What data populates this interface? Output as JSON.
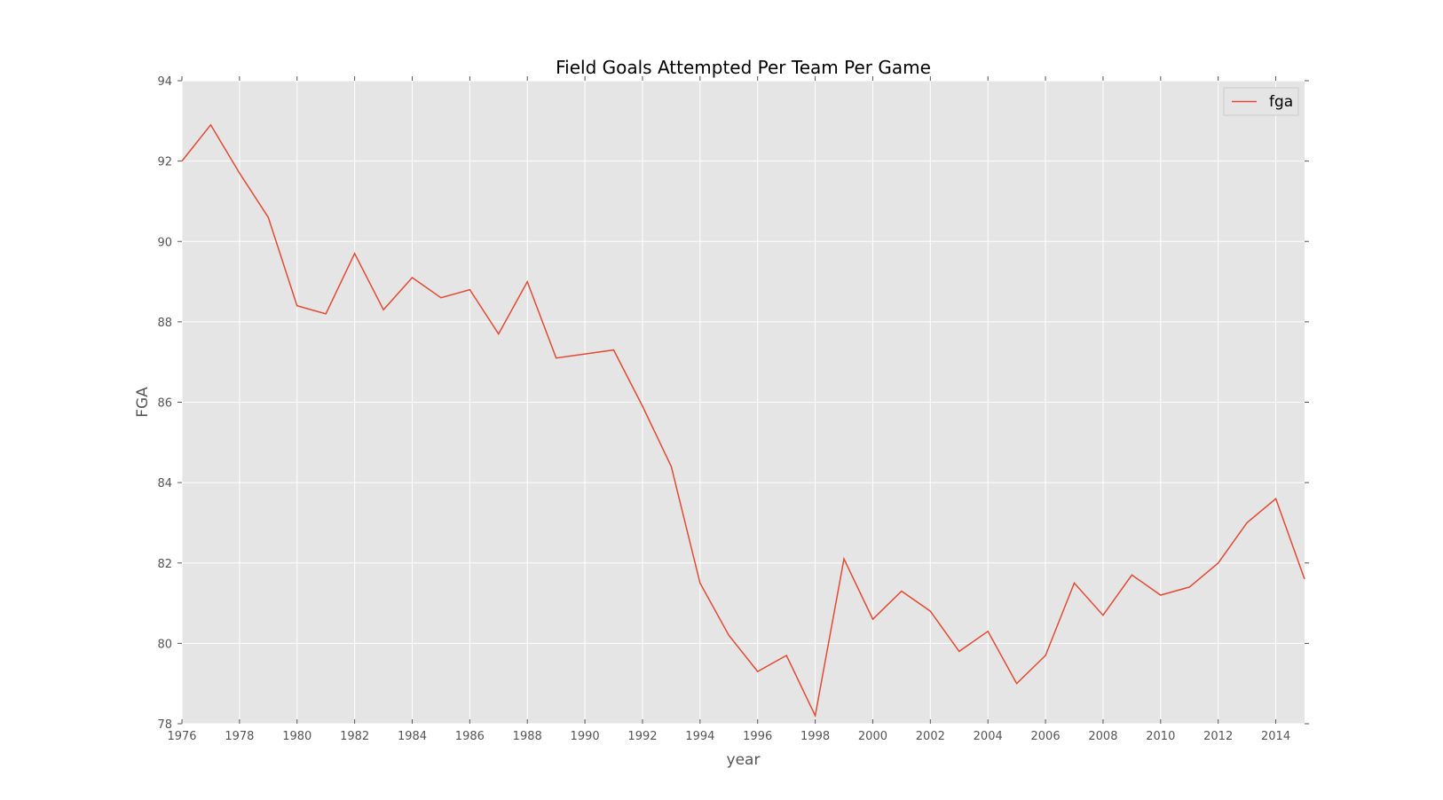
{
  "chart_data": {
    "type": "line",
    "title": "Field Goals Attempted Per Team Per Game",
    "xlabel": "year",
    "ylabel": "FGA",
    "xlim": [
      1976,
      2015
    ],
    "ylim": [
      78,
      94
    ],
    "xticks": [
      1976,
      1978,
      1980,
      1982,
      1984,
      1986,
      1988,
      1990,
      1992,
      1994,
      1996,
      1998,
      2000,
      2002,
      2004,
      2006,
      2008,
      2010,
      2012,
      2014
    ],
    "yticks": [
      78,
      80,
      82,
      84,
      86,
      88,
      90,
      92,
      94
    ],
    "grid": true,
    "legend": "top-right",
    "colors": {
      "plot_background": "#E5E5E5",
      "grid": "#FFFFFF",
      "line": "#E24A33"
    },
    "series": [
      {
        "name": "fga",
        "x": [
          1976,
          1977,
          1978,
          1979,
          1980,
          1981,
          1982,
          1983,
          1984,
          1985,
          1986,
          1987,
          1988,
          1989,
          1990,
          1991,
          1992,
          1993,
          1994,
          1995,
          1996,
          1997,
          1998,
          1999,
          2000,
          2001,
          2002,
          2003,
          2004,
          2005,
          2006,
          2007,
          2008,
          2009,
          2010,
          2011,
          2012,
          2013,
          2014,
          2015
        ],
        "values": [
          92.0,
          92.9,
          91.7,
          90.6,
          88.4,
          88.2,
          89.7,
          88.3,
          89.1,
          88.6,
          88.8,
          87.7,
          89.0,
          87.1,
          87.2,
          87.3,
          85.9,
          84.4,
          81.5,
          80.2,
          79.3,
          79.7,
          78.2,
          82.1,
          80.6,
          81.3,
          80.8,
          79.8,
          80.3,
          79.0,
          79.7,
          81.5,
          80.7,
          81.7,
          81.2,
          81.4,
          82.0,
          83.0,
          83.6,
          81.6
        ]
      }
    ]
  }
}
